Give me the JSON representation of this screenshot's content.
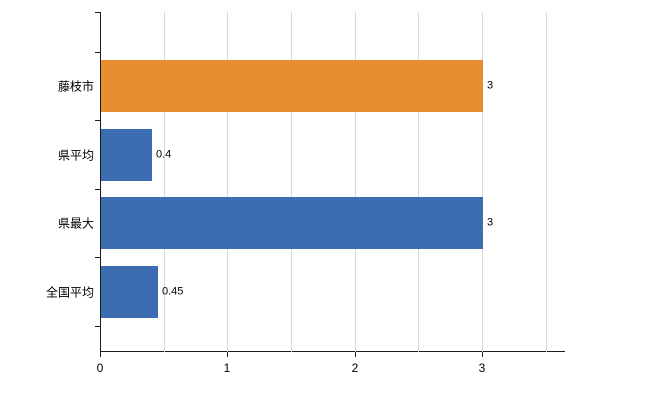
{
  "chart_data": {
    "type": "bar",
    "orientation": "horizontal",
    "title": "",
    "xlabel": "",
    "ylabel": "",
    "categories": [
      "藤枝市",
      "県平均",
      "県最大",
      "全国平均"
    ],
    "values": [
      3,
      0.4,
      3,
      0.45
    ],
    "value_labels": [
      "3",
      "0.4",
      "3",
      "0.45"
    ],
    "colors": [
      "#e98d33",
      "#3c6db0",
      "#3c6db0",
      "#3c6db0"
    ],
    "x_ticks": [
      0,
      1,
      2,
      3
    ],
    "x_tick_labels": [
      "0",
      "1",
      "2",
      "3"
    ],
    "x_gridline_step": 0.5,
    "xlim": [
      0,
      3.65
    ],
    "grid": true,
    "legend": null,
    "background_color": "#ffffff",
    "gridline_color": "#d9d9d9",
    "axis_color": "#1a1a1a"
  }
}
